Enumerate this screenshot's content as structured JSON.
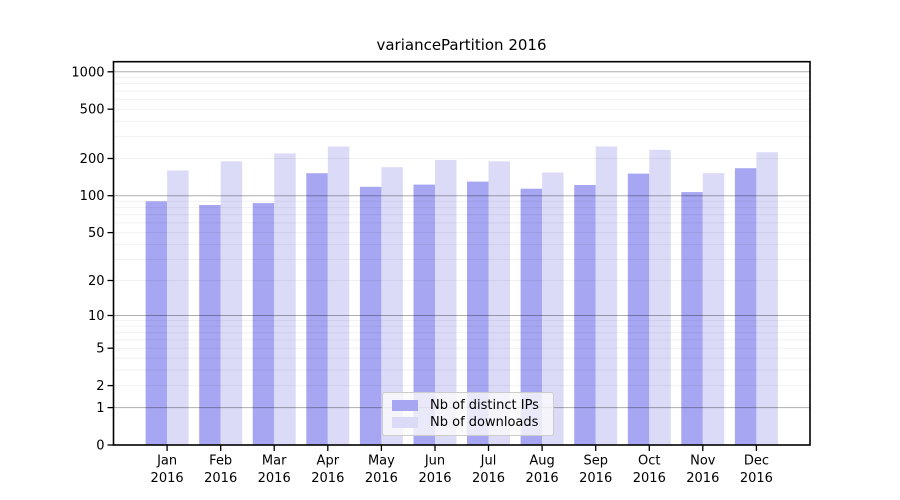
{
  "chart_data": {
    "type": "bar",
    "title": "variancePartition 2016",
    "scale": "log1p",
    "grid": true,
    "legend_position": "lower center",
    "categories": [
      "Jan",
      "Feb",
      "Mar",
      "Apr",
      "May",
      "Jun",
      "Jul",
      "Aug",
      "Sep",
      "Oct",
      "Nov",
      "Dec"
    ],
    "x_year_label": "2016",
    "series": [
      {
        "name": "Nb of distinct IPs",
        "color": "#a6a6f2",
        "values": [
          90,
          84,
          87,
          152,
          118,
          123,
          130,
          114,
          122,
          151,
          107,
          167
        ]
      },
      {
        "name": "Nb of downloads",
        "color": "#dbdbf8",
        "values": [
          160,
          190,
          220,
          250,
          170,
          195,
          190,
          154,
          250,
          235,
          152,
          225
        ]
      }
    ],
    "y_ticks": [
      0,
      1,
      2,
      5,
      10,
      20,
      50,
      100,
      200,
      500,
      1000
    ],
    "ylim": [
      0,
      1205
    ],
    "colors": {
      "axis": "#000000",
      "major_grid": "rgba(0,0,0,0.32)",
      "minor_grid": "rgba(0,0,0,0.055)",
      "background": "#ffffff"
    }
  }
}
